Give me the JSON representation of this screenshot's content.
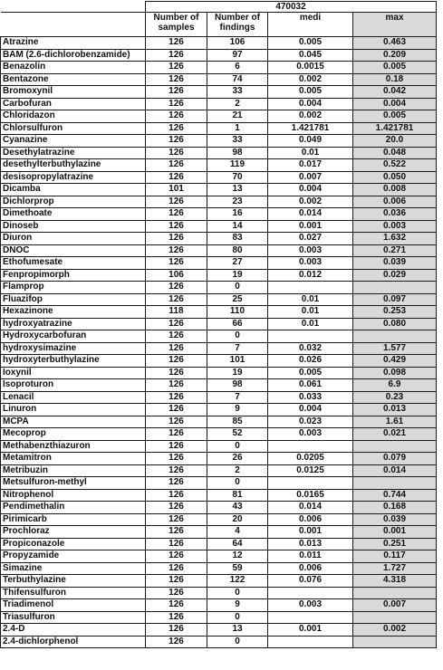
{
  "table": {
    "group_header": "470032",
    "columns": [
      "Number of samples",
      "Number of findings",
      "medi",
      "max"
    ],
    "rows": [
      {
        "name": "Atrazine",
        "samples": "126",
        "findings": "106",
        "medi": "0.005",
        "max": "0.463"
      },
      {
        "name": "BAM (2.6-dichlorobenzamide)",
        "samples": "126",
        "findings": "97",
        "medi": "0.045",
        "max": "0.209"
      },
      {
        "name": "Benazolin",
        "samples": "126",
        "findings": "6",
        "medi": "0.0015",
        "max": "0.005"
      },
      {
        "name": "Bentazone",
        "samples": "126",
        "findings": "74",
        "medi": "0.002",
        "max": "0.18"
      },
      {
        "name": "Bromoxynil",
        "samples": "126",
        "findings": "33",
        "medi": "0.005",
        "max": "0.042"
      },
      {
        "name": "Carbofuran",
        "samples": "126",
        "findings": "2",
        "medi": "0.004",
        "max": "0.004"
      },
      {
        "name": "Chloridazon",
        "samples": "126",
        "findings": "21",
        "medi": "0.002",
        "max": "0.005"
      },
      {
        "name": "Chlorsulfuron",
        "samples": "126",
        "findings": "1",
        "medi": "1.421781",
        "max": "1.421781"
      },
      {
        "name": "Cyanazine",
        "samples": "126",
        "findings": "33",
        "medi": "0.049",
        "max": "20.0"
      },
      {
        "name": "Desethylatrazine",
        "samples": "126",
        "findings": "98",
        "medi": "0.01",
        "max": "0.048"
      },
      {
        "name": "desethylterbuthylazine",
        "samples": "126",
        "findings": "119",
        "medi": "0.017",
        "max": "0.522"
      },
      {
        "name": "desisopropylatrazine",
        "samples": "126",
        "findings": "70",
        "medi": "0.007",
        "max": "0.050"
      },
      {
        "name": "Dicamba",
        "samples": "101",
        "findings": "13",
        "medi": "0.004",
        "max": "0.008"
      },
      {
        "name": "Dichlorprop",
        "samples": "126",
        "findings": "23",
        "medi": "0.002",
        "max": "0.006"
      },
      {
        "name": "Dimethoate",
        "samples": "126",
        "findings": "16",
        "medi": "0.014",
        "max": "0.036"
      },
      {
        "name": "Dinoseb",
        "samples": "126",
        "findings": "14",
        "medi": "0.001",
        "max": "0.003"
      },
      {
        "name": "Diuron",
        "samples": "126",
        "findings": "83",
        "medi": "0.027",
        "max": "1.632"
      },
      {
        "name": "DNOC",
        "samples": "126",
        "findings": "80",
        "medi": "0.003",
        "max": "0.271"
      },
      {
        "name": "Ethofumesate",
        "samples": "126",
        "findings": "27",
        "medi": "0.003",
        "max": "0.039"
      },
      {
        "name": "Fenpropimorph",
        "samples": "106",
        "findings": "19",
        "medi": "0.012",
        "max": "0.029"
      },
      {
        "name": "Flamprop",
        "samples": "126",
        "findings": "0",
        "medi": "",
        "max": ""
      },
      {
        "name": "Fluazifop",
        "samples": "126",
        "findings": "25",
        "medi": "0.01",
        "max": "0.097"
      },
      {
        "name": "Hexazinone",
        "samples": "118",
        "findings": "110",
        "medi": "0.01",
        "max": "0.253"
      },
      {
        "name": "hydroxyatrazine",
        "samples": "126",
        "findings": "66",
        "medi": "0.01",
        "max": "0.080"
      },
      {
        "name": "Hydroxycarbofuran",
        "samples": "126",
        "findings": "0",
        "medi": "",
        "max": ""
      },
      {
        "name": "hydroxysimazine",
        "samples": "126",
        "findings": "7",
        "medi": "0.032",
        "max": "1.577"
      },
      {
        "name": "hydroxyterbuthylazine",
        "samples": "126",
        "findings": "101",
        "medi": "0.026",
        "max": "0.429"
      },
      {
        "name": "Ioxynil",
        "samples": "126",
        "findings": "19",
        "medi": "0.005",
        "max": "0.098"
      },
      {
        "name": "Isoproturon",
        "samples": "126",
        "findings": "98",
        "medi": "0.061",
        "max": "6.9"
      },
      {
        "name": "Lenacil",
        "samples": "126",
        "findings": "7",
        "medi": "0.033",
        "max": "0.23"
      },
      {
        "name": "Linuron",
        "samples": "126",
        "findings": "9",
        "medi": "0.004",
        "max": "0.013"
      },
      {
        "name": "MCPA",
        "samples": "126",
        "findings": "85",
        "medi": "0.023",
        "max": "1.61"
      },
      {
        "name": "Mecoprop",
        "samples": "126",
        "findings": "52",
        "medi": "0.003",
        "max": "0.021"
      },
      {
        "name": "Methabenzthiazuron",
        "samples": "126",
        "findings": "0",
        "medi": "",
        "max": ""
      },
      {
        "name": "Metamitron",
        "samples": "126",
        "findings": "26",
        "medi": "0.0205",
        "max": "0.079"
      },
      {
        "name": "Metribuzin",
        "samples": "126",
        "findings": "2",
        "medi": "0.0125",
        "max": "0.014"
      },
      {
        "name": "Metsulfuron-methyl",
        "samples": "126",
        "findings": "0",
        "medi": "",
        "max": ""
      },
      {
        "name": "Nitrophenol",
        "samples": "126",
        "findings": "81",
        "medi": "0.0165",
        "max": "0.744"
      },
      {
        "name": "Pendimethalin",
        "samples": "126",
        "findings": "43",
        "medi": "0.014",
        "max": "0.168"
      },
      {
        "name": "Pirimicarb",
        "samples": "126",
        "findings": "20",
        "medi": "0.006",
        "max": "0.039"
      },
      {
        "name": "Prochloraz",
        "samples": "126",
        "findings": "4",
        "medi": "0.001",
        "max": "0.001"
      },
      {
        "name": "Propiconazole",
        "samples": "126",
        "findings": "64",
        "medi": "0.013",
        "max": "0.251"
      },
      {
        "name": "Propyzamide",
        "samples": "126",
        "findings": "12",
        "medi": "0.011",
        "max": "0.117"
      },
      {
        "name": "Simazine",
        "samples": "126",
        "findings": "59",
        "medi": "0.006",
        "max": "1.727"
      },
      {
        "name": "Terbuthylazine",
        "samples": "126",
        "findings": "122",
        "medi": "0.076",
        "max": "4.318"
      },
      {
        "name": "Thifensulfuron",
        "samples": "126",
        "findings": "0",
        "medi": "",
        "max": ""
      },
      {
        "name": "Triadimenol",
        "samples": "126",
        "findings": "9",
        "medi": "0.003",
        "max": "0.007"
      },
      {
        "name": "Triasulfuron",
        "samples": "126",
        "findings": "0",
        "medi": "",
        "max": ""
      },
      {
        "name": "2.4-D",
        "samples": "126",
        "findings": "13",
        "medi": "0.001",
        "max": "0.002"
      },
      {
        "name": "2.4-dichlorphenol",
        "samples": "126",
        "findings": "0",
        "medi": "",
        "max": ""
      }
    ]
  }
}
